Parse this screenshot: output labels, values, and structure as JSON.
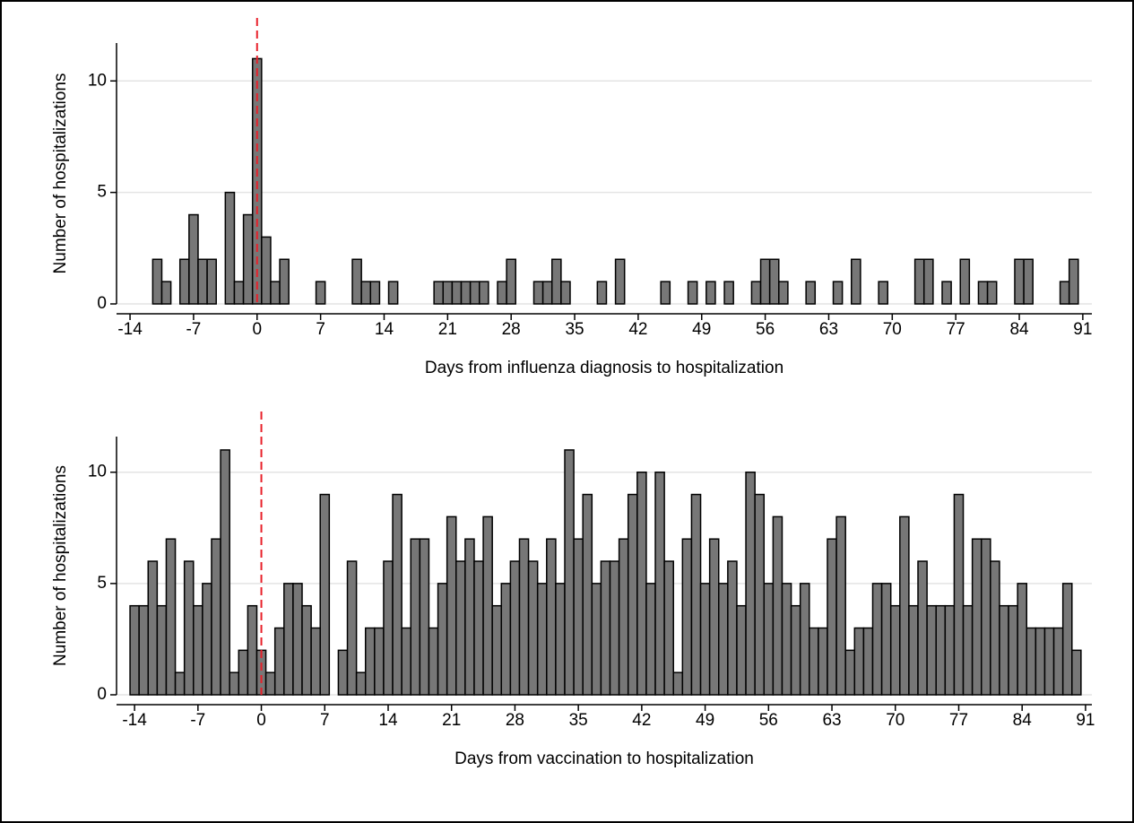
{
  "chart_data": [
    {
      "type": "bar",
      "ylabel": "Number of hospitalizations",
      "xlabel": "Days from influenza diagnosis to hospitalization",
      "x": [
        -11,
        -10,
        -8,
        -7,
        -6,
        -5,
        -3,
        -2,
        -1,
        0,
        1,
        2,
        3,
        7,
        11,
        12,
        13,
        15,
        20,
        21,
        22,
        23,
        24,
        25,
        27,
        28,
        31,
        32,
        33,
        34,
        38,
        40,
        45,
        48,
        50,
        52,
        55,
        56,
        57,
        58,
        61,
        64,
        66,
        69,
        73,
        74,
        76,
        78,
        80,
        81,
        84,
        85,
        89,
        90
      ],
      "values": [
        2,
        1,
        2,
        4,
        2,
        2,
        5,
        1,
        4,
        11,
        3,
        1,
        2,
        1,
        2,
        1,
        1,
        1,
        1,
        1,
        1,
        1,
        1,
        1,
        1,
        2,
        1,
        1,
        2,
        1,
        1,
        2,
        1,
        1,
        1,
        1,
        1,
        2,
        2,
        1,
        1,
        1,
        2,
        1,
        2,
        2,
        1,
        2,
        1,
        1,
        2,
        2,
        1,
        2
      ],
      "color": "#777777",
      "vline": 0,
      "vline_color": "#e8202a",
      "xlim": [
        -14.5,
        92
      ],
      "xticks": [
        -14,
        -7,
        0,
        7,
        14,
        21,
        28,
        35,
        42,
        49,
        56,
        63,
        70,
        77,
        84,
        91
      ],
      "ylim": [
        0,
        11.7
      ],
      "yticks": [
        0,
        5,
        10
      ],
      "grid": true
    },
    {
      "type": "bar",
      "ylabel": "Number of hospitalizations",
      "xlabel": "Days from vaccination to hospitalization",
      "x": [
        -14,
        -13,
        -12,
        -11,
        -10,
        -9,
        -8,
        -7,
        -6,
        -5,
        -4,
        -3,
        -2,
        -1,
        0,
        1,
        2,
        3,
        4,
        5,
        6,
        7,
        8,
        9,
        10,
        11,
        12,
        13,
        14,
        15,
        16,
        17,
        18,
        19,
        20,
        21,
        22,
        23,
        24,
        25,
        26,
        27,
        28,
        29,
        30,
        31,
        32,
        33,
        34,
        35,
        36,
        37,
        38,
        39,
        40,
        41,
        42,
        43,
        44,
        45,
        46,
        47,
        48,
        49,
        50,
        51,
        52,
        53,
        54,
        55,
        56,
        57,
        58,
        59,
        60,
        61,
        62,
        63,
        64,
        65,
        66,
        67,
        68,
        69,
        70,
        71,
        72,
        73,
        74,
        75,
        76,
        77,
        78,
        79,
        80,
        81,
        82,
        83,
        84,
        85,
        86,
        87,
        88,
        89,
        90
      ],
      "values": [
        4,
        4,
        6,
        4,
        7,
        1,
        6,
        4,
        5,
        7,
        11,
        1,
        2,
        4,
        2,
        1,
        3,
        5,
        5,
        4,
        3,
        9,
        0,
        2,
        6,
        1,
        3,
        3,
        6,
        9,
        3,
        7,
        7,
        3,
        5,
        8,
        6,
        7,
        6,
        8,
        4,
        5,
        6,
        7,
        6,
        5,
        7,
        5,
        11,
        7,
        9,
        5,
        6,
        6,
        7,
        9,
        10,
        5,
        10,
        6,
        1,
        7,
        9,
        5,
        7,
        5,
        6,
        4,
        10,
        9,
        5,
        8,
        5,
        4,
        5,
        3,
        3,
        7,
        8,
        2,
        3,
        3,
        5,
        5,
        4,
        8,
        4,
        6,
        4,
        4,
        4,
        9,
        4,
        7,
        7,
        6,
        4,
        4,
        5,
        3,
        3,
        3,
        3,
        5,
        2
      ],
      "color": "#777777",
      "vline": 0,
      "vline_color": "#e8202a",
      "xlim": [
        -15,
        91.7
      ],
      "xticks": [
        -14,
        -7,
        0,
        7,
        14,
        21,
        28,
        35,
        42,
        49,
        56,
        63,
        70,
        77,
        84,
        91
      ],
      "ylim": [
        0,
        11.6
      ],
      "yticks": [
        0,
        5,
        10
      ],
      "grid": true
    }
  ]
}
